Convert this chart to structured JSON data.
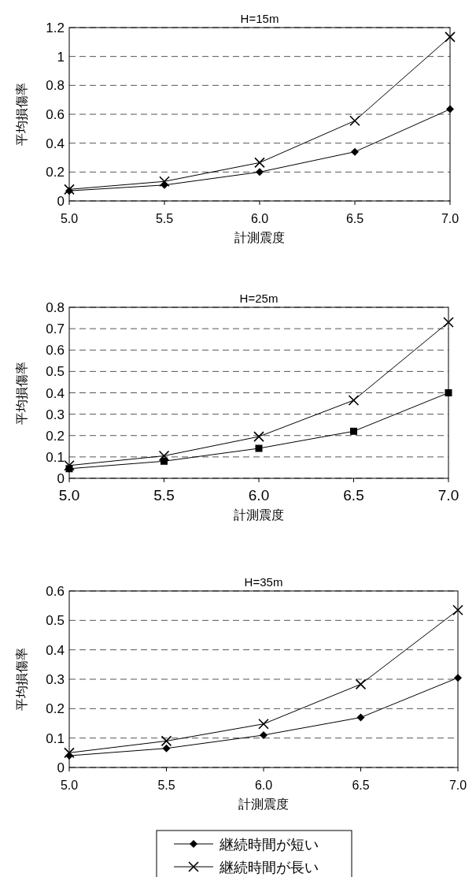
{
  "chart_data": [
    {
      "type": "line",
      "title": "H=15m",
      "xlabel": "計測震度",
      "ylabel": "平均損傷率",
      "x": [
        5.0,
        5.5,
        6.0,
        6.5,
        7.0
      ],
      "xlim": [
        5.0,
        7.0
      ],
      "xticks": [
        {
          "value": 5.0,
          "label": "5.0"
        },
        {
          "value": 5.5,
          "label": "5.5"
        },
        {
          "value": 6.0,
          "label": "6.0"
        },
        {
          "value": 6.5,
          "label": "6.5"
        },
        {
          "value": 7.0,
          "label": "7.0"
        }
      ],
      "ylim": [
        0,
        1.2
      ],
      "yticks": [
        0,
        0.2,
        0.4,
        0.6,
        0.8,
        1,
        1.2
      ],
      "grid": "y",
      "line_style": "solid",
      "series": [
        {
          "color": "#000000",
          "marker": "diamond",
          "values": [
            0.07,
            0.11,
            0.2,
            0.34,
            0.635
          ]
        },
        {
          "color": "#000000",
          "marker": "cross",
          "values": [
            0.08,
            0.135,
            0.265,
            0.555,
            1.135
          ]
        }
      ]
    },
    {
      "type": "line",
      "title": "H=25m",
      "xlabel": "計測震度",
      "ylabel": "平均損傷率",
      "x": [
        5.0,
        5.5,
        6.0,
        6.5,
        7.0
      ],
      "xlim": [
        5.0,
        7.0
      ],
      "xticks": [
        {
          "value": 5.0,
          "label": "5.0"
        },
        {
          "value": 5.5,
          "label": "5.5"
        },
        {
          "value": 6.0,
          "label": "6.0"
        },
        {
          "value": 6.5,
          "label": "6.5"
        },
        {
          "value": 7.0,
          "label": "7.0"
        }
      ],
      "ylim": [
        0,
        0.8
      ],
      "yticks": [
        0,
        0.1,
        0.2,
        0.3,
        0.4,
        0.5,
        0.6,
        0.7,
        0.8
      ],
      "grid": "y",
      "line_style": "solid",
      "series": [
        {
          "color": "#000000",
          "marker": "square",
          "values": [
            0.045,
            0.08,
            0.14,
            0.22,
            0.4
          ]
        },
        {
          "color": "#000000",
          "marker": "cross",
          "values": [
            0.06,
            0.105,
            0.195,
            0.365,
            0.73
          ]
        }
      ]
    },
    {
      "type": "line",
      "title": "H=35m",
      "xlabel": "計測震度",
      "ylabel": "平均損傷率",
      "x": [
        5.0,
        5.5,
        6.0,
        6.5,
        7.0
      ],
      "xlim": [
        5.0,
        7.0
      ],
      "xticks": [
        {
          "value": 5.0,
          "label": "5.0"
        },
        {
          "value": 5.5,
          "label": "5.5"
        },
        {
          "value": 6.0,
          "label": "6.0"
        },
        {
          "value": 6.5,
          "label": "6.5"
        },
        {
          "value": 7.0,
          "label": "7.0"
        }
      ],
      "ylim": [
        0,
        0.6
      ],
      "yticks": [
        0,
        0.1,
        0.2,
        0.3,
        0.4,
        0.5,
        0.6
      ],
      "grid": "y",
      "line_style": "solid",
      "legend": "bottom",
      "series": [
        {
          "name": "継続時間が短い",
          "color": "#000000",
          "marker": "diamond",
          "values": [
            0.04,
            0.065,
            0.11,
            0.17,
            0.305
          ]
        },
        {
          "name": "継続時間が長い",
          "color": "#000000",
          "marker": "cross",
          "values": [
            0.05,
            0.09,
            0.148,
            0.283,
            0.535
          ]
        }
      ]
    }
  ]
}
